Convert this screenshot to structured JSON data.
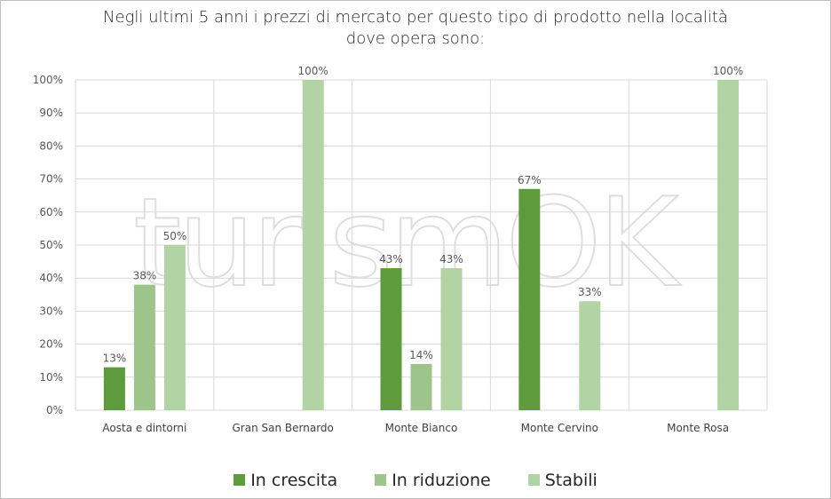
{
  "chart_data": {
    "type": "bar",
    "title_lines": [
      "Negli ultimi 5 anni i prezzi di mercato per questo tipo di prodotto nella località",
      "dove opera sono:"
    ],
    "categories": [
      "Aosta e dintorni",
      "Gran San Bernardo",
      "Monte Bianco",
      "Monte Cervino",
      "Monte Rosa"
    ],
    "series": [
      {
        "name": "In crescita",
        "color": "#5e9b3c",
        "values": [
          0.13,
          null,
          0.43,
          0.67,
          null
        ],
        "labels": [
          "13%",
          "",
          "43%",
          "67%",
          ""
        ]
      },
      {
        "name": "In riduzione",
        "color": "#9dc48a",
        "values": [
          0.38,
          null,
          0.14,
          null,
          null
        ],
        "labels": [
          "38%",
          "",
          "14%",
          "",
          ""
        ]
      },
      {
        "name": "Stabili",
        "color": "#b2d3a3",
        "values": [
          0.5,
          1.0,
          0.43,
          0.33,
          1.0
        ],
        "labels": [
          "50%",
          "100%",
          "43%",
          "33%",
          "100%"
        ]
      }
    ],
    "yticks": [
      "0%",
      "10%",
      "20%",
      "30%",
      "40%",
      "50%",
      "60%",
      "70%",
      "80%",
      "90%",
      "100%"
    ],
    "ylim": [
      0,
      1
    ],
    "grid": true,
    "legend_position": "bottom"
  },
  "watermark": {
    "text": "turismOK"
  }
}
